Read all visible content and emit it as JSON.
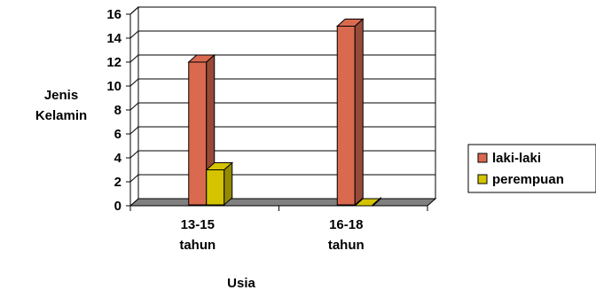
{
  "chart_data": {
    "type": "bar",
    "categories": [
      [
        "13-15",
        "tahun"
      ],
      [
        "16-18",
        "tahun"
      ]
    ],
    "series": [
      {
        "name": "laki-laki",
        "values": [
          12,
          15
        ],
        "color": "#D96A50"
      },
      {
        "name": "perempuan",
        "values": [
          3,
          0
        ],
        "color": "#D4C400"
      }
    ],
    "title": "",
    "xlabel": "Usia",
    "ylabel": [
      "Jenis",
      "Kelamin"
    ],
    "ylim": [
      0,
      16
    ],
    "yticks": [
      0,
      2,
      4,
      6,
      8,
      10,
      12,
      14,
      16
    ],
    "grid": true,
    "legend": "right"
  }
}
